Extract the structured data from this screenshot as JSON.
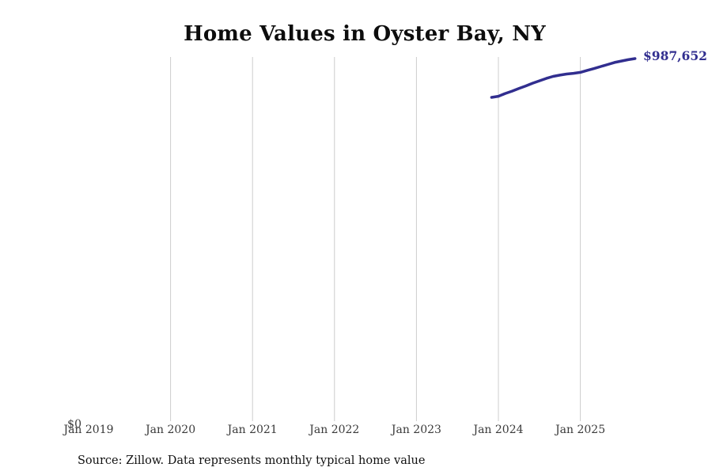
{
  "page": {
    "background_color": "#ffffff"
  },
  "chart_data": {
    "type": "line",
    "title": "Home Values in Oyster Bay, NY",
    "source_note": "Source: Zillow. Data represents monthly typical home value",
    "y_zero_label": "$0",
    "end_value_label": "$987,652",
    "line_color": "#312e8f",
    "annotation_color": "#312e8f",
    "gridline_color": "#cccccc",
    "xlabel": "",
    "ylabel": "",
    "ylim": [
      0,
      991900
    ],
    "legend": "none",
    "x_ticks": [
      {
        "label": "Jan 2019",
        "month": "2019-01",
        "gridline": false
      },
      {
        "label": "Jan 2020",
        "month": "2020-01",
        "gridline": true
      },
      {
        "label": "Jan 2021",
        "month": "2021-01",
        "gridline": true
      },
      {
        "label": "Jan 2022",
        "month": "2022-01",
        "gridline": true
      },
      {
        "label": "Jan 2023",
        "month": "2023-01",
        "gridline": true
      },
      {
        "label": "Jan 2024",
        "month": "2024-01",
        "gridline": true
      },
      {
        "label": "Jan 2025",
        "month": "2025-01",
        "gridline": true
      }
    ],
    "series": [
      {
        "name": "Monthly typical home value",
        "points": [
          {
            "month": "2023-12",
            "value": 882000
          },
          {
            "month": "2024-01",
            "value": 885000
          },
          {
            "month": "2024-02",
            "value": 892500
          },
          {
            "month": "2024-03",
            "value": 899000
          },
          {
            "month": "2024-04",
            "value": 906000
          },
          {
            "month": "2024-05",
            "value": 913000
          },
          {
            "month": "2024-06",
            "value": 920500
          },
          {
            "month": "2024-07",
            "value": 927000
          },
          {
            "month": "2024-08",
            "value": 933500
          },
          {
            "month": "2024-09",
            "value": 939000
          },
          {
            "month": "2024-10",
            "value": 942500
          },
          {
            "month": "2024-11",
            "value": 945500
          },
          {
            "month": "2024-12",
            "value": 947500
          },
          {
            "month": "2025-01",
            "value": 950000
          },
          {
            "month": "2025-02",
            "value": 955500
          },
          {
            "month": "2025-03",
            "value": 960500
          },
          {
            "month": "2025-04",
            "value": 966000
          },
          {
            "month": "2025-05",
            "value": 971500
          },
          {
            "month": "2025-06",
            "value": 977000
          },
          {
            "month": "2025-07",
            "value": 981000
          },
          {
            "month": "2025-08",
            "value": 984500
          },
          {
            "month": "2025-09",
            "value": 987652
          }
        ]
      }
    ]
  }
}
